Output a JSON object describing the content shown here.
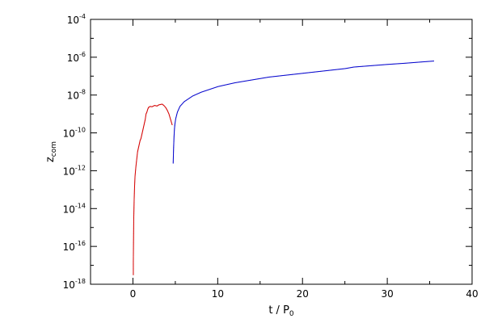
{
  "chart_data": {
    "type": "scatter",
    "title": "",
    "xlabel": {
      "main": "t / P",
      "sub": "0"
    },
    "ylabel": {
      "main": "z",
      "sub": "com"
    },
    "xlim": [
      -5,
      40
    ],
    "ylim_log10": [
      -18,
      -4
    ],
    "y_scale": "log",
    "grid": false,
    "x_ticks": [
      0,
      10,
      20,
      30,
      40
    ],
    "y_tick_exponents": [
      -18,
      -16,
      -14,
      -12,
      -10,
      -8,
      -6,
      -4
    ],
    "y_tick_base": "10",
    "series": [
      {
        "color": "#d40000",
        "x": [
          0.0,
          0.0,
          0.02,
          0.05,
          0.1,
          0.15,
          0.2,
          0.3,
          0.4,
          0.5,
          0.6,
          0.7,
          0.8,
          0.9,
          1.0,
          1.1,
          1.2,
          1.3,
          1.4,
          1.5,
          1.6,
          1.7,
          1.8,
          2.0,
          2.2,
          2.5,
          2.8,
          3.0,
          3.2,
          3.4,
          3.6,
          3.8,
          4.0,
          4.2,
          4.4,
          4.6
        ],
        "log10_y": [
          -17.5,
          -16.8,
          -15.8,
          -14.5,
          -13.5,
          -12.8,
          -12.3,
          -11.8,
          -11.4,
          -11.0,
          -10.8,
          -10.6,
          -10.4,
          -10.3,
          -10.1,
          -9.9,
          -9.7,
          -9.5,
          -9.3,
          -9.0,
          -8.9,
          -8.75,
          -8.65,
          -8.6,
          -8.62,
          -8.55,
          -8.58,
          -8.52,
          -8.5,
          -8.48,
          -8.55,
          -8.65,
          -8.8,
          -9.0,
          -9.3,
          -9.6
        ]
      },
      {
        "color": "#0000cc",
        "x": [
          4.7,
          4.75,
          4.8,
          4.85,
          4.9,
          5.0,
          5.2,
          5.5,
          6.0,
          6.5,
          7.0,
          8.0,
          9.0,
          10.0,
          12.0,
          14.0,
          16.0,
          18.0,
          20.0,
          22.0,
          24.0,
          25.0,
          26.0,
          28.0,
          30.0,
          32.0,
          34.0,
          35.5
        ],
        "log10_y": [
          -11.6,
          -10.8,
          -10.2,
          -9.8,
          -9.55,
          -9.25,
          -8.9,
          -8.6,
          -8.35,
          -8.2,
          -8.05,
          -7.85,
          -7.7,
          -7.55,
          -7.35,
          -7.2,
          -7.05,
          -6.95,
          -6.85,
          -6.75,
          -6.65,
          -6.6,
          -6.52,
          -6.45,
          -6.38,
          -6.32,
          -6.25,
          -6.2
        ]
      }
    ]
  }
}
